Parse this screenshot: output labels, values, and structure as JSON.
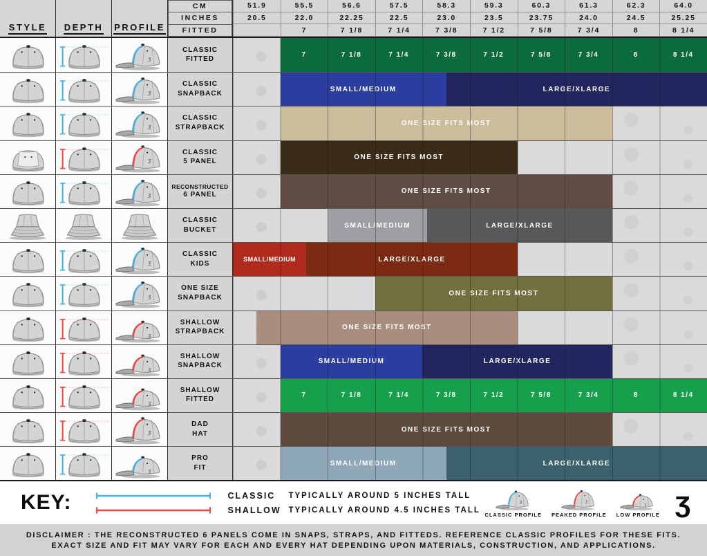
{
  "header": {
    "style": "STYLE",
    "depth": "DEPTH",
    "profile": "PROFILE",
    "measure_rows": [
      "CM",
      "INCHES",
      "FITTED"
    ]
  },
  "accent_colors": {
    "blue": "#3fb4e8",
    "red": "#f2453f"
  },
  "chart_data": {
    "type": "table",
    "title": "Hat style size chart",
    "columns": {
      "cm": [
        "51.9",
        "55.5",
        "56.6",
        "57.5",
        "58.3",
        "59.3",
        "60.3",
        "61.3",
        "62.3",
        "64.0"
      ],
      "inches": [
        "20.5",
        "22.0",
        "22.25",
        "22.5",
        "23.0",
        "23.5",
        "23.75",
        "24.0",
        "24.5",
        "25.25"
      ],
      "fitted": [
        "",
        "7",
        "7 1/8",
        "7 1/4",
        "7 3/8",
        "7 1/2",
        "7 5/8",
        "7 3/4",
        "8",
        "8 1/4"
      ]
    },
    "rows": [
      {
        "id": "classic-fitted",
        "label": [
          "CLASSIC",
          "FITTED"
        ],
        "icon": "cap",
        "accent": "blue",
        "profile_variant": "classic",
        "bars": [
          {
            "start": 1,
            "end": 2,
            "label": "7",
            "color": "#0c6b3c"
          },
          {
            "start": 2,
            "end": 3,
            "label": "7 1/8",
            "color": "#0c6b3c"
          },
          {
            "start": 3,
            "end": 4,
            "label": "7 1/4",
            "color": "#0c6b3c"
          },
          {
            "start": 4,
            "end": 5,
            "label": "7 3/8",
            "color": "#0c6b3c"
          },
          {
            "start": 5,
            "end": 6,
            "label": "7 1/2",
            "color": "#0c6b3c"
          },
          {
            "start": 6,
            "end": 7,
            "label": "7 5/8",
            "color": "#0c6b3c"
          },
          {
            "start": 7,
            "end": 8,
            "label": "7 3/4",
            "color": "#0c6b3c"
          },
          {
            "start": 8,
            "end": 9,
            "label": "8",
            "color": "#0c6b3c"
          },
          {
            "start": 9,
            "end": 10,
            "label": "8 1/4",
            "color": "#0c6b3c"
          }
        ]
      },
      {
        "id": "classic-snapback",
        "label": [
          "CLASSIC",
          "SNAPBACK"
        ],
        "icon": "cap",
        "accent": "blue",
        "profile_variant": "classic",
        "bars": [
          {
            "start": 1,
            "end": 4.5,
            "label": "SMALL/MEDIUM",
            "color": "#2c3da0"
          },
          {
            "start": 4.5,
            "end": 10,
            "label": "LARGE/XLARGE",
            "color": "#22265e"
          }
        ]
      },
      {
        "id": "classic-strapback",
        "label": [
          "CLASSIC",
          "STRAPBACK"
        ],
        "icon": "cap",
        "accent": "blue",
        "profile_variant": "classic",
        "bars": [
          {
            "start": 1,
            "end": 8,
            "label": "ONE SIZE FITS MOST",
            "color": "#cbbc9b"
          }
        ]
      },
      {
        "id": "classic-5-panel",
        "label": [
          "CLASSIC",
          "5 PANEL"
        ],
        "icon": "panel5",
        "accent": "red",
        "profile_variant": "peaked",
        "bars": [
          {
            "start": 1,
            "end": 6,
            "label": "ONE SIZE FITS MOST",
            "color": "#3a2a18"
          }
        ]
      },
      {
        "id": "reconstructed-6-panel",
        "label": [
          "RECONSTRUCTED",
          "6 PANEL"
        ],
        "icon": "cap",
        "accent": "blue",
        "profile_variant": "classic",
        "bars": [
          {
            "start": 1,
            "end": 8,
            "label": "ONE SIZE FITS MOST",
            "color": "#5f4c42"
          }
        ]
      },
      {
        "id": "classic-bucket",
        "label": [
          "CLASSIC",
          "BUCKET"
        ],
        "icon": "bucket",
        "accent": null,
        "profile_variant": null,
        "bars": [
          {
            "start": 2,
            "end": 4.1,
            "label": "SMALL/MEDIUM",
            "color": "#9d9fa2"
          },
          {
            "start": 4.1,
            "end": 8,
            "label": "LARGE/XLARGE",
            "color": "#57585a"
          }
        ]
      },
      {
        "id": "classic-kids",
        "label": [
          "CLASSIC",
          "KIDS"
        ],
        "icon": "cap",
        "accent": "blue",
        "profile_variant": "classic",
        "bars": [
          {
            "start": 0,
            "end": 1.55,
            "label": "SMALL/MEDIUM",
            "color": "#b12a1e"
          },
          {
            "start": 1.55,
            "end": 6,
            "label": "LARGE/XLARGE",
            "color": "#7d2a12"
          }
        ]
      },
      {
        "id": "one-size-snapback",
        "label": [
          "ONE SIZE",
          "SNAPBACK"
        ],
        "icon": "cap",
        "accent": "blue",
        "profile_variant": "classic",
        "bars": [
          {
            "start": 3,
            "end": 8,
            "label": "ONE SIZE FITS MOST",
            "color": "#71703e"
          }
        ]
      },
      {
        "id": "shallow-strapback",
        "label": [
          "SHALLOW",
          "STRAPBACK"
        ],
        "icon": "cap",
        "accent": "red",
        "profile_variant": "low",
        "bars": [
          {
            "start": 0.5,
            "end": 6,
            "label": "ONE SIZE FITS MOST",
            "color": "#a98e7e"
          }
        ]
      },
      {
        "id": "shallow-snapback",
        "label": [
          "SHALLOW",
          "SNAPBACK"
        ],
        "icon": "cap",
        "accent": "red",
        "profile_variant": "low",
        "bars": [
          {
            "start": 1,
            "end": 4,
            "label": "SMALL/MEDIUM",
            "color": "#2c3da0"
          },
          {
            "start": 4,
            "end": 8,
            "label": "LARGE/XLARGE",
            "color": "#22265e"
          }
        ]
      },
      {
        "id": "shallow-fitted",
        "label": [
          "SHALLOW",
          "FITTED"
        ],
        "icon": "cap",
        "accent": "red",
        "profile_variant": "low",
        "bars": [
          {
            "start": 1,
            "end": 2,
            "label": "7",
            "color": "#17a04b"
          },
          {
            "start": 2,
            "end": 3,
            "label": "7 1/8",
            "color": "#17a04b"
          },
          {
            "start": 3,
            "end": 4,
            "label": "7 1/4",
            "color": "#17a04b"
          },
          {
            "start": 4,
            "end": 5,
            "label": "7 3/8",
            "color": "#17a04b"
          },
          {
            "start": 5,
            "end": 6,
            "label": "7 1/2",
            "color": "#17a04b"
          },
          {
            "start": 6,
            "end": 7,
            "label": "7 5/8",
            "color": "#17a04b"
          },
          {
            "start": 7,
            "end": 8,
            "label": "7 3/4",
            "color": "#17a04b"
          },
          {
            "start": 8,
            "end": 9,
            "label": "8",
            "color": "#17a04b"
          },
          {
            "start": 9,
            "end": 10,
            "label": "8 1/4",
            "color": "#17a04b"
          }
        ]
      },
      {
        "id": "dad-hat",
        "label": [
          "DAD",
          "HAT"
        ],
        "icon": "cap",
        "accent": "red",
        "profile_variant": "peaked",
        "bars": [
          {
            "start": 1,
            "end": 8,
            "label": "ONE SIZE FITS MOST",
            "color": "#5e4a3c"
          }
        ]
      },
      {
        "id": "pro-fit",
        "label": [
          "PRO",
          "FIT"
        ],
        "icon": "cap",
        "accent": "blue",
        "profile_variant": "low",
        "bars": [
          {
            "start": 1,
            "end": 4.5,
            "label": "SMALL/MEDIUM",
            "color": "#8ea8b8"
          },
          {
            "start": 4.5,
            "end": 10,
            "label": "LARGE/XLARGE",
            "color": "#3a616c"
          }
        ]
      }
    ]
  },
  "key": {
    "title": "KEY:",
    "entries": [
      {
        "label": "CLASSIC",
        "desc": "TYPICALLY AROUND 5 INCHES TALL",
        "color": "#3fb4e8"
      },
      {
        "label": "SHALLOW",
        "desc": "TYPICALLY AROUND 4.5 INCHES TALL",
        "color": "#f2453f"
      }
    ],
    "profiles": [
      {
        "label": "CLASSIC PROFILE",
        "accent": "#3fb4e8",
        "variant": "classic"
      },
      {
        "label": "PEAKED PROFILE",
        "accent": "#f2453f",
        "variant": "peaked"
      },
      {
        "label": "LOW PROFILE",
        "accent": "#f2453f",
        "variant": "low"
      }
    ],
    "logo_glyph": "ʒ"
  },
  "disclaimer": {
    "line1": "DISCLAIMER : THE RECONSTRUCTED 6 PANELS COME IN SNAPS, STRAPS, AND FITTEDS. REFERENCE CLASSIC PROFILES FOR THESE FITS.",
    "line2": "EXACT SIZE AND FIT MAY VARY FOR EACH AND EVERY HAT DEPENDING UPON MATERIALS, CONSTRUCTION, AND APPLICATIONS."
  }
}
